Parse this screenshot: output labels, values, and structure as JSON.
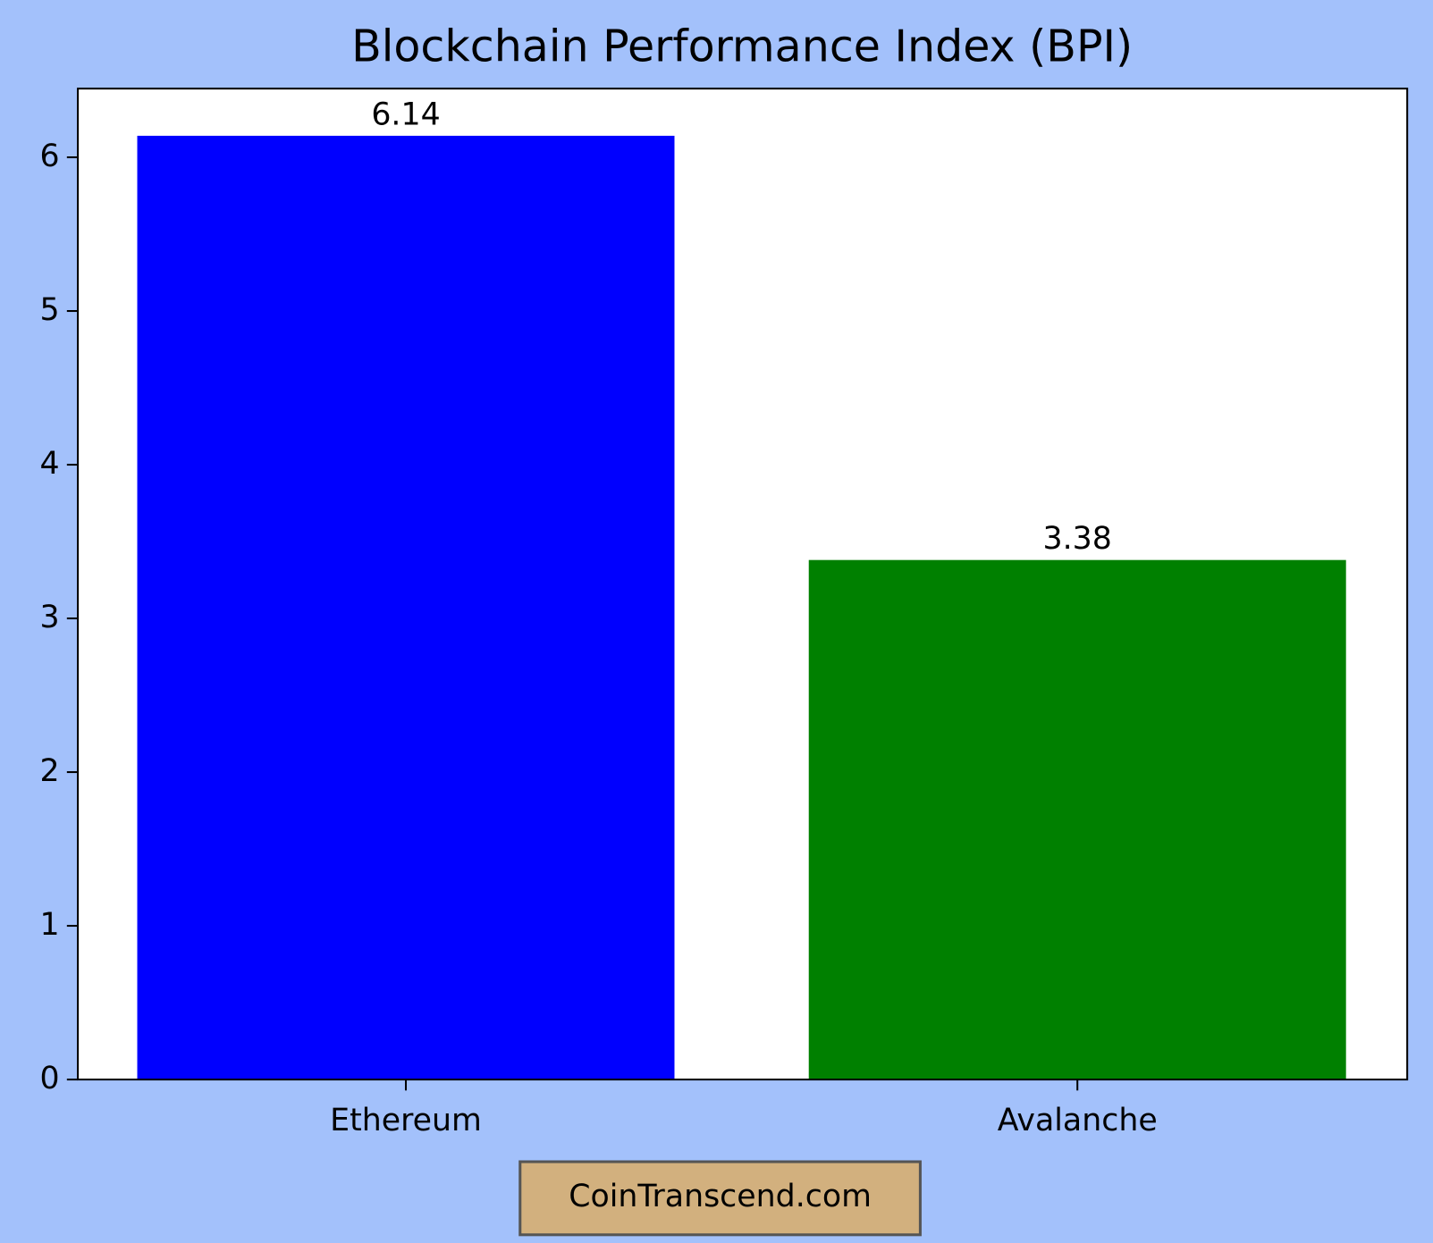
{
  "chart_data": {
    "type": "bar",
    "title": "Blockchain Performance Index (BPI)",
    "categories": [
      "Ethereum",
      "Avalanche"
    ],
    "values": [
      6.14,
      3.38
    ],
    "colors": [
      "#0000ff",
      "#008000"
    ],
    "ylim": [
      0,
      6.447
    ],
    "yticks": [
      0,
      1,
      2,
      3,
      4,
      5,
      6
    ],
    "watermark": "CoinTranscend.com"
  }
}
